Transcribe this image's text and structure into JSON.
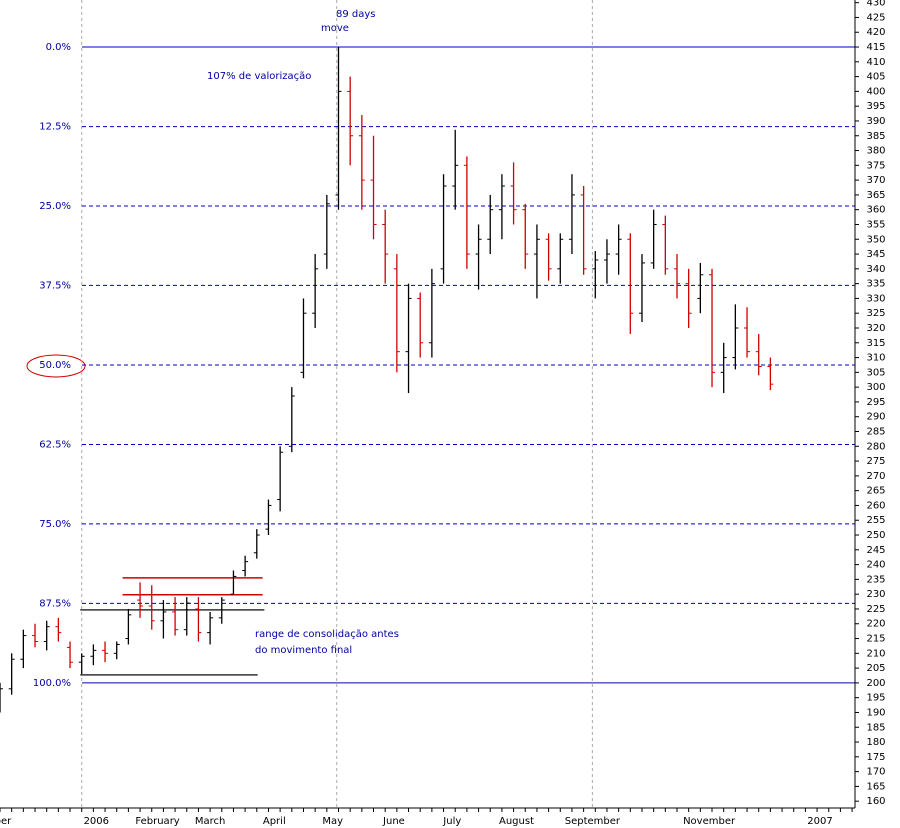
{
  "chart_data": {
    "type": "ohlc",
    "xlim": [
      0,
      293
    ],
    "ylim": [
      157.7,
      430.9
    ],
    "yticks": [
      160,
      165,
      170,
      175,
      180,
      185,
      190,
      195,
      200,
      205,
      210,
      215,
      220,
      225,
      230,
      235,
      240,
      245,
      250,
      255,
      260,
      265,
      270,
      275,
      280,
      285,
      290,
      295,
      300,
      305,
      310,
      315,
      320,
      325,
      330,
      335,
      340,
      345,
      350,
      355,
      360,
      365,
      370,
      375,
      380,
      385,
      390,
      395,
      400,
      405,
      410,
      415,
      420,
      425,
      430
    ],
    "xticks": [
      {
        "value": 1,
        "label": "ber"
      },
      {
        "value": 33,
        "label": "2006"
      },
      {
        "value": 54,
        "label": "February"
      },
      {
        "value": 72,
        "label": "March"
      },
      {
        "value": 94,
        "label": "April"
      },
      {
        "value": 114,
        "label": "May"
      },
      {
        "value": 135,
        "label": "June"
      },
      {
        "value": 155,
        "label": "July"
      },
      {
        "value": 177,
        "label": "August"
      },
      {
        "value": 203,
        "label": "September"
      },
      {
        "value": 243,
        "label": "November"
      },
      {
        "value": 281,
        "label": "2007"
      }
    ],
    "xgrid": [
      28,
      115.4,
      203
    ],
    "up_color": "#000000",
    "down_color": "#d00000",
    "x": [
      0,
      4,
      8,
      12,
      16,
      20,
      24,
      28,
      32,
      36,
      40,
      44,
      48,
      52,
      56,
      60,
      64,
      68,
      72,
      76,
      80,
      84,
      88,
      92,
      96,
      100,
      104,
      108,
      112,
      116,
      120,
      124,
      128,
      132,
      136,
      140,
      144,
      148,
      152,
      156,
      160,
      164,
      168,
      172,
      176,
      180,
      184,
      188,
      192,
      196,
      200,
      204,
      208,
      212,
      216,
      220,
      224,
      228,
      232,
      236,
      240,
      244,
      248,
      252,
      256,
      260,
      264
    ],
    "open": [
      196,
      198,
      208,
      216,
      214,
      219,
      212,
      207,
      209,
      211,
      210,
      215,
      228,
      226,
      221,
      224,
      218,
      225,
      217,
      222,
      230,
      238,
      244,
      252,
      262,
      280,
      305,
      325,
      345,
      365,
      400,
      385,
      370,
      355,
      340,
      312,
      330,
      315,
      340,
      368,
      375,
      345,
      350,
      360,
      368,
      360,
      345,
      350,
      340,
      350,
      365,
      340,
      343,
      345,
      350,
      325,
      342,
      355,
      340,
      335,
      330,
      338,
      305,
      310,
      320,
      312,
      307
    ],
    "high": [
      200,
      210,
      218,
      220,
      221,
      222,
      214,
      210,
      213,
      214,
      214,
      225,
      234,
      233,
      228,
      229,
      229,
      229,
      224,
      229,
      238,
      243,
      252,
      262,
      280,
      300,
      330,
      345,
      365,
      415,
      405,
      392,
      385,
      360,
      345,
      335,
      332,
      340,
      372,
      387,
      378,
      355,
      365,
      372,
      376,
      362,
      355,
      352,
      352,
      372,
      368,
      346,
      350,
      355,
      352,
      345,
      360,
      358,
      345,
      340,
      342,
      340,
      315,
      328,
      327,
      318,
      310
    ],
    "low": [
      190,
      196,
      205,
      212,
      211,
      214,
      205,
      203,
      206,
      207,
      208,
      213,
      222,
      218,
      215,
      216,
      216,
      214,
      213,
      220,
      230,
      236,
      242,
      250,
      258,
      278,
      303,
      320,
      340,
      360,
      375,
      360,
      350,
      335,
      305,
      298,
      310,
      310,
      335,
      360,
      340,
      333,
      345,
      350,
      355,
      340,
      330,
      336,
      335,
      345,
      338,
      330,
      335,
      338,
      318,
      322,
      340,
      338,
      330,
      320,
      325,
      300,
      298,
      306,
      310,
      304,
      299
    ],
    "close": [
      198,
      208,
      216,
      214,
      219,
      217,
      207,
      209,
      211,
      210,
      213,
      223,
      226,
      221,
      224,
      218,
      227,
      217,
      222,
      228,
      236,
      241,
      250,
      260,
      278,
      297,
      325,
      340,
      362,
      400,
      385,
      370,
      355,
      345,
      312,
      330,
      315,
      335,
      368,
      375,
      345,
      350,
      360,
      368,
      360,
      345,
      350,
      340,
      350,
      365,
      340,
      343,
      345,
      350,
      325,
      342,
      355,
      340,
      335,
      325,
      338,
      305,
      310,
      320,
      312,
      307,
      301
    ],
    "levels": [
      {
        "value": 415,
        "label": "0.0%"
      },
      {
        "value": 388.1,
        "label": "12.5%"
      },
      {
        "value": 361.25,
        "label": "25.0%"
      },
      {
        "value": 334.4,
        "label": "37.5%"
      },
      {
        "value": 307.5,
        "label": "50.0%"
      },
      {
        "value": 280.6,
        "label": "62.5%"
      },
      {
        "value": 253.75,
        "label": "75.0%"
      },
      {
        "value": 226.9,
        "label": "87.5%"
      },
      {
        "value": 200,
        "label": "100.0%"
      }
    ],
    "range_lines": [
      {
        "value": 235.5,
        "from": 42,
        "to": 90,
        "color": "#d00000"
      },
      {
        "value": 229.8,
        "from": 42,
        "to": 90,
        "color": "#d00000"
      },
      {
        "value": 224.7,
        "from": 27.5,
        "to": 90.6,
        "color": "#333333"
      },
      {
        "value": 202.7,
        "from": 27.5,
        "to": 88.3,
        "color": "#333333"
      }
    ],
    "annotations": [
      "89 days",
      "move",
      "107% de valorização",
      "range de consolidação antes",
      "do movimento final"
    ]
  }
}
